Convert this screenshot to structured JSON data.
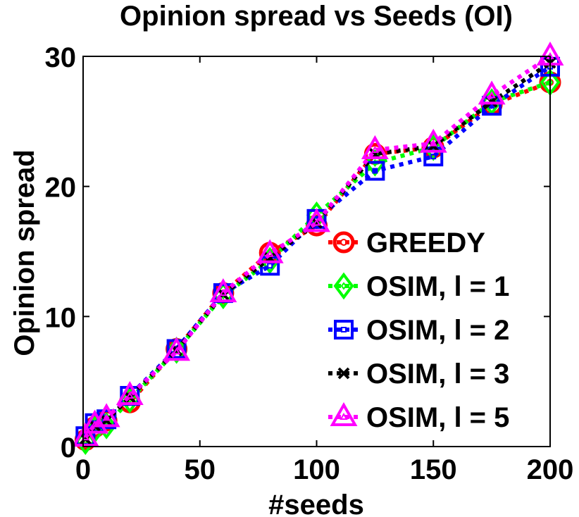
{
  "chart_data": {
    "type": "line",
    "title": "Opinion spread vs Seeds (OI)",
    "xlabel": "#seeds",
    "ylabel": "Opinion spread",
    "xlim": [
      0,
      200
    ],
    "ylim": [
      0,
      30
    ],
    "xticks": [
      0,
      50,
      100,
      150,
      200
    ],
    "yticks": [
      0,
      10,
      20,
      30
    ],
    "x": [
      1,
      5,
      10,
      20,
      40,
      60,
      80,
      100,
      125,
      150,
      175,
      200
    ],
    "legend_position": "center-right",
    "series": [
      {
        "name": "GREEDY",
        "color": "#ff0000",
        "marker": "circle",
        "values": [
          0.5,
          1.5,
          2.0,
          3.4,
          7.5,
          11.8,
          14.9,
          17.0,
          22.5,
          23.0,
          26.3,
          28.0
        ]
      },
      {
        "name": "OSIM, l = 1",
        "color": "#00ff00",
        "marker": "diamond",
        "values": [
          0.4,
          1.3,
          1.6,
          3.6,
          7.4,
          11.6,
          14.3,
          17.8,
          21.8,
          23.0,
          26.5,
          28.0
        ]
      },
      {
        "name": "OSIM, l = 2",
        "color": "#0000ff",
        "marker": "square",
        "values": [
          0.8,
          1.8,
          2.1,
          3.9,
          7.5,
          11.8,
          13.9,
          17.5,
          21.2,
          22.3,
          26.2,
          29.2
        ]
      },
      {
        "name": "OSIM, l = 3",
        "color": "#000000",
        "marker": "x",
        "values": [
          0.6,
          1.6,
          2.0,
          3.8,
          7.4,
          11.7,
          14.5,
          17.2,
          22.5,
          23.1,
          26.5,
          29.5
        ]
      },
      {
        "name": "OSIM, l = 5",
        "color": "#ff00ff",
        "marker": "triangle",
        "values": [
          0.7,
          1.7,
          2.2,
          3.9,
          7.3,
          11.8,
          14.8,
          17.2,
          22.8,
          23.3,
          27.0,
          30.0
        ]
      }
    ]
  }
}
